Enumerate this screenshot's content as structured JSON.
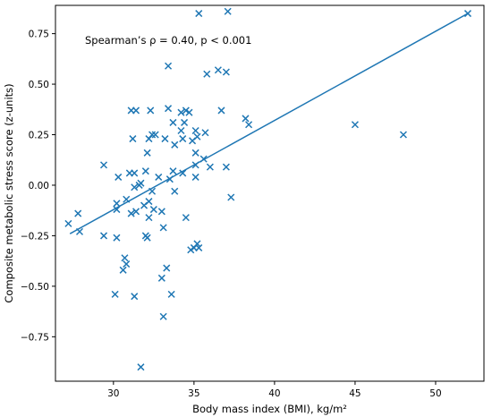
{
  "chart_data": {
    "type": "scatter",
    "title": "",
    "xlabel": "Body mass index (BMI), kg/m²",
    "ylabel": "Composite metabolic stress score (z-units)",
    "annotation": "Spearman’s ρ = 0.40, p < 0.001",
    "xlim": [
      26.4,
      53.0
    ],
    "ylim": [
      -0.97,
      0.89
    ],
    "xticks": [
      30,
      35,
      40,
      45,
      50
    ],
    "yticks": [
      -0.75,
      -0.5,
      -0.25,
      0.0,
      0.25,
      0.5,
      0.75
    ],
    "ytick_labels": [
      "−0.75",
      "−0.50",
      "−0.25",
      "0.00",
      "0.25",
      "0.50",
      "0.75"
    ],
    "marker": "x",
    "color": "#1f77b4",
    "grid": false,
    "fit_line": {
      "x": [
        27.3,
        52.0
      ],
      "y": [
        -0.24,
        0.85
      ]
    },
    "points": [
      [
        27.2,
        -0.19
      ],
      [
        27.8,
        -0.14
      ],
      [
        27.9,
        -0.23
      ],
      [
        29.4,
        0.1
      ],
      [
        29.4,
        -0.25
      ],
      [
        30.1,
        -0.54
      ],
      [
        30.2,
        -0.26
      ],
      [
        30.2,
        -0.09
      ],
      [
        30.2,
        -0.12
      ],
      [
        30.3,
        0.04
      ],
      [
        30.6,
        -0.42
      ],
      [
        30.7,
        -0.36
      ],
      [
        30.8,
        -0.39
      ],
      [
        30.8,
        -0.07
      ],
      [
        31.0,
        0.06
      ],
      [
        31.1,
        -0.14
      ],
      [
        31.1,
        0.37
      ],
      [
        31.2,
        0.23
      ],
      [
        31.3,
        -0.55
      ],
      [
        31.3,
        -0.01
      ],
      [
        31.3,
        0.06
      ],
      [
        31.4,
        0.37
      ],
      [
        31.4,
        -0.13
      ],
      [
        31.6,
        0.0
      ],
      [
        31.7,
        -0.9
      ],
      [
        31.7,
        0.01
      ],
      [
        31.9,
        -0.1
      ],
      [
        32.0,
        -0.25
      ],
      [
        32.0,
        0.07
      ],
      [
        32.1,
        -0.26
      ],
      [
        32.1,
        0.16
      ],
      [
        32.2,
        0.23
      ],
      [
        32.2,
        -0.08
      ],
      [
        32.2,
        -0.16
      ],
      [
        32.3,
        0.37
      ],
      [
        32.4,
        0.25
      ],
      [
        32.4,
        -0.03
      ],
      [
        32.5,
        -0.12
      ],
      [
        32.6,
        0.25
      ],
      [
        32.8,
        0.04
      ],
      [
        33.0,
        -0.46
      ],
      [
        33.0,
        -0.13
      ],
      [
        33.1,
        -0.65
      ],
      [
        33.1,
        -0.21
      ],
      [
        33.2,
        0.23
      ],
      [
        33.3,
        -0.41
      ],
      [
        33.4,
        0.38
      ],
      [
        33.4,
        0.59
      ],
      [
        33.5,
        0.03
      ],
      [
        33.6,
        -0.54
      ],
      [
        33.7,
        0.31
      ],
      [
        33.7,
        0.07
      ],
      [
        33.8,
        -0.03
      ],
      [
        33.8,
        0.2
      ],
      [
        34.2,
        0.27
      ],
      [
        34.2,
        0.36
      ],
      [
        34.3,
        0.06
      ],
      [
        34.3,
        0.23
      ],
      [
        34.4,
        0.31
      ],
      [
        34.5,
        -0.16
      ],
      [
        34.5,
        0.37
      ],
      [
        34.7,
        0.36
      ],
      [
        34.8,
        -0.32
      ],
      [
        34.9,
        0.22
      ],
      [
        35.0,
        -0.31
      ],
      [
        35.1,
        0.04
      ],
      [
        35.1,
        0.27
      ],
      [
        35.1,
        0.16
      ],
      [
        35.1,
        0.1
      ],
      [
        35.2,
        0.24
      ],
      [
        35.2,
        -0.29
      ],
      [
        35.3,
        -0.31
      ],
      [
        35.3,
        0.85
      ],
      [
        35.6,
        0.13
      ],
      [
        35.7,
        0.26
      ],
      [
        35.8,
        0.55
      ],
      [
        36.0,
        0.09
      ],
      [
        36.5,
        0.57
      ],
      [
        36.7,
        0.37
      ],
      [
        37.0,
        0.56
      ],
      [
        37.0,
        0.09
      ],
      [
        37.1,
        0.86
      ],
      [
        37.3,
        -0.06
      ],
      [
        38.2,
        0.33
      ],
      [
        38.4,
        0.3
      ],
      [
        45.0,
        0.3
      ],
      [
        48.0,
        0.25
      ],
      [
        52.0,
        0.85
      ]
    ]
  }
}
